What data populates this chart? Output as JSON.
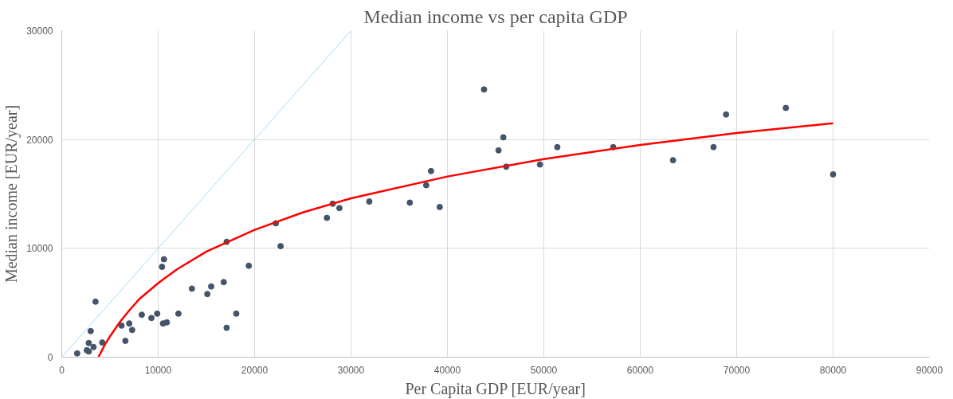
{
  "chart_data": {
    "type": "scatter",
    "title": "Median income vs per capita GDP",
    "xlabel": "Per Capita GDP [EUR/year]",
    "ylabel": "Median income [EUR/year]",
    "xlim": [
      0,
      90000
    ],
    "ylim": [
      0,
      30000
    ],
    "xticks": [
      0,
      10000,
      20000,
      30000,
      40000,
      50000,
      60000,
      70000,
      80000,
      90000
    ],
    "yticks": [
      0,
      10000,
      20000,
      30000
    ],
    "grid": true,
    "series": [
      {
        "marker": "circle",
        "color": "#44546a",
        "x": [
          1600,
          2600,
          2800,
          2800,
          3300,
          3000,
          3500,
          4200,
          6600,
          6200,
          7000,
          7300,
          8300,
          9300,
          9900,
          10500,
          10900,
          10400,
          10600,
          12100,
          13500,
          15100,
          15500,
          16800,
          17100,
          18100,
          19400,
          17100,
          22700,
          22200,
          27500,
          28100,
          28800,
          31900,
          36100,
          37800,
          38300,
          39200,
          43800,
          45300,
          45800,
          46100,
          49600,
          51400,
          57200,
          63400,
          67600,
          68900,
          75100,
          80000
        ],
        "values": [
          350,
          640,
          530,
          1300,
          930,
          2400,
          5100,
          1350,
          1500,
          2900,
          3100,
          2500,
          3900,
          3600,
          4000,
          3100,
          3200,
          8300,
          9000,
          4000,
          6300,
          5800,
          6500,
          6900,
          2700,
          4000,
          8400,
          10600,
          10200,
          12300,
          12800,
          14100,
          13700,
          14300,
          14200,
          15800,
          17100,
          13800,
          24600,
          19000,
          20200,
          17500,
          17700,
          19300,
          19300,
          18100,
          19300,
          22300,
          22900,
          16800
        ]
      },
      {
        "type": "line",
        "color": "#ff0000",
        "line_style": "solid",
        "x": [
          3800,
          4500,
          5000,
          6000,
          7000,
          8000,
          10000,
          12000,
          15000,
          20000,
          25000,
          30000,
          40000,
          50000,
          60000,
          70000,
          80000
        ],
        "values": [
          0,
          1200,
          1900,
          3200,
          4300,
          5300,
          6800,
          8100,
          9700,
          11700,
          13300,
          14600,
          16600,
          18200,
          19500,
          20600,
          21500
        ]
      },
      {
        "type": "line",
        "color": "#a6dcf2",
        "line_style": "solid",
        "x": [
          0,
          30000
        ],
        "values": [
          0,
          30000
        ]
      }
    ]
  }
}
